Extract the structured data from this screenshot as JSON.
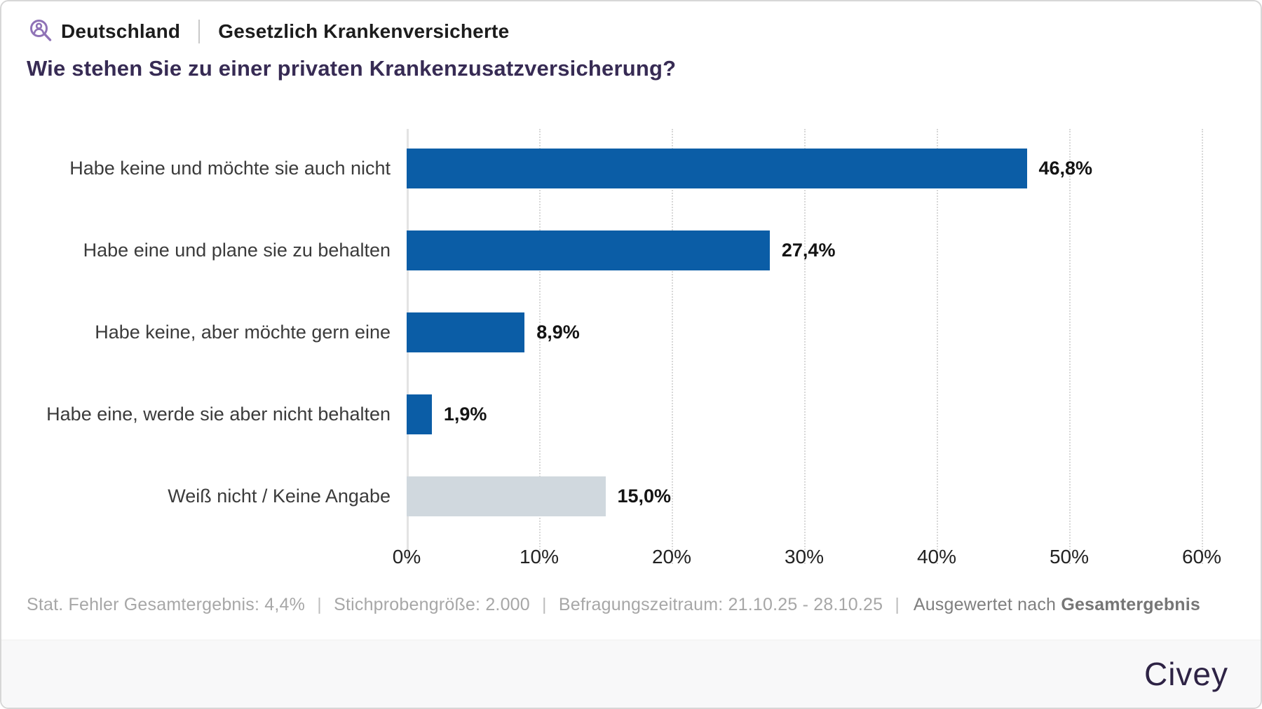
{
  "header": {
    "region": "Deutschland",
    "audience": "Gesetzlich Krankenversicherte",
    "icon": "person-magnifier-icon",
    "icon_color": "#8f72b6"
  },
  "title": "Wie stehen Sie zu einer privaten Krankenzusatzversicherung?",
  "chart_data": {
    "type": "bar",
    "orientation": "horizontal",
    "categories": [
      "Habe keine und möchte sie auch nicht",
      "Habe eine und plane sie zu behalten",
      "Habe keine, aber möchte gern eine",
      "Habe eine, werde sie aber nicht behalten",
      "Weiß nicht / Keine Angabe"
    ],
    "values": [
      46.8,
      27.4,
      8.9,
      1.9,
      15.0
    ],
    "value_labels": [
      "46,8%",
      "27,4%",
      "8,9%",
      "1,9%",
      "15,0%"
    ],
    "bar_colors": [
      "#0b5da6",
      "#0b5da6",
      "#0b5da6",
      "#0b5da6",
      "#d0d8de"
    ],
    "title": "Wie stehen Sie zu einer privaten Krankenzusatzversicherung?",
    "xlabel": "",
    "ylabel": "",
    "xlim": [
      0,
      60
    ],
    "x_ticks": [
      "0%",
      "10%",
      "20%",
      "30%",
      "40%",
      "50%",
      "60%"
    ],
    "x_tick_values": [
      0,
      10,
      20,
      30,
      40,
      50,
      60
    ],
    "grid": "dotted vertical gridlines, solid axis at 0%",
    "legend": "none"
  },
  "footnote": {
    "stat_error": "Stat. Fehler Gesamtergebnis: 4,4%",
    "sample_size": "Stichprobengröße: 2.000",
    "period": "Befragungszeitraum: 21.10.25 - 28.10.25",
    "evaluated_label": "Ausgewertet nach",
    "evaluated_value": "Gesamtergebnis",
    "separator": "|"
  },
  "branding": {
    "logo_text": "Civey",
    "logo_color": "#2e2345"
  },
  "colors": {
    "bar_blue": "#0b5da6",
    "bar_gray": "#d0d8de",
    "title_purple": "#372b54",
    "card_border": "#d7d7d7",
    "strip_bg": "#f8f8f9",
    "footnote_gray": "#a7a7a7"
  }
}
